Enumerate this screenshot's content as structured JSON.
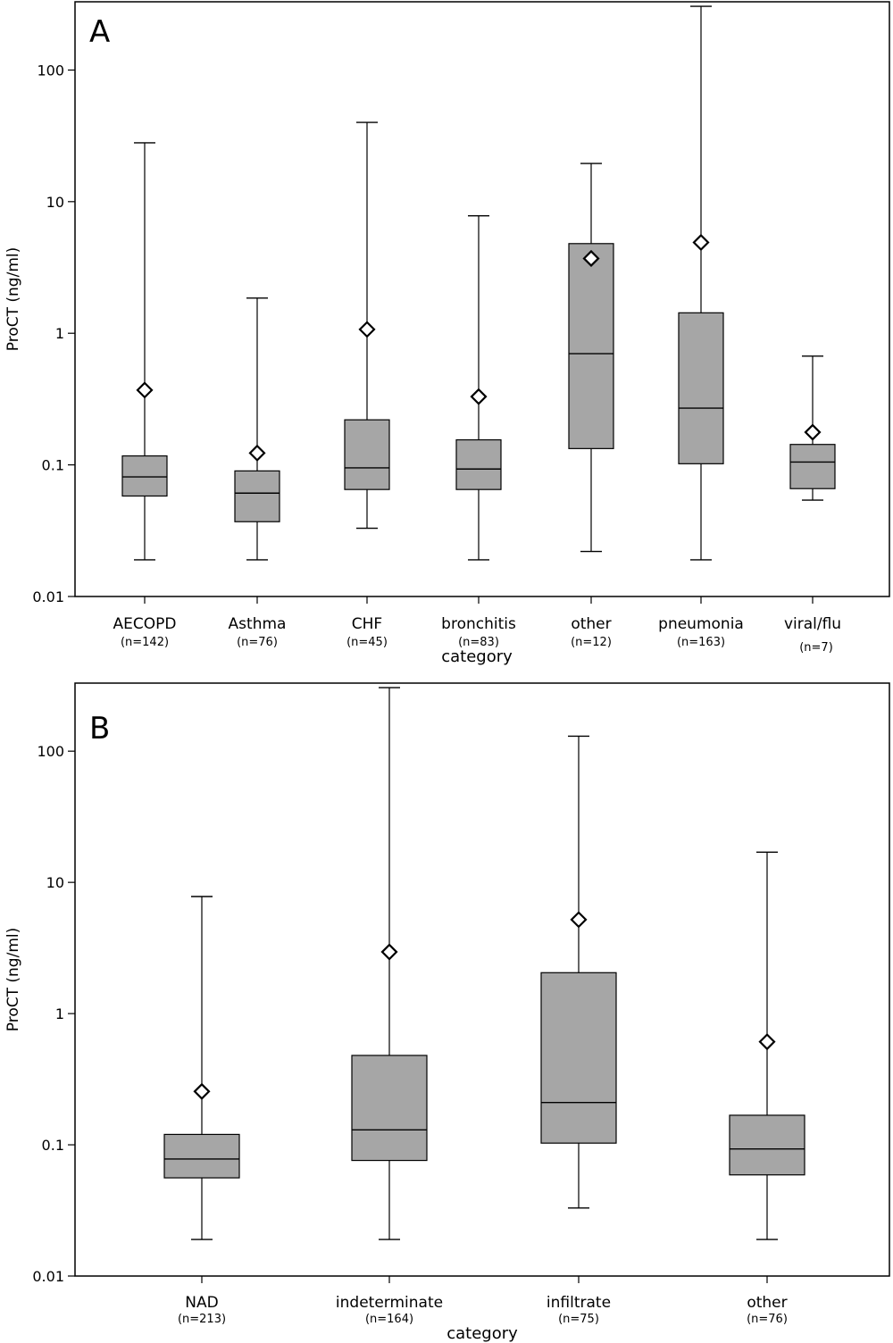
{
  "chart_data": [
    {
      "type": "box",
      "panel_label": "A",
      "ylabel": "ProCT (ng/ml)",
      "xlabel": "category",
      "yscale": "log",
      "ylim": [
        0.01,
        330
      ],
      "yticks": [
        {
          "value": 0.01,
          "label": "0.01"
        },
        {
          "value": 0.1,
          "label": "0.1"
        },
        {
          "value": 1,
          "label": "1"
        },
        {
          "value": 10,
          "label": "10"
        },
        {
          "value": 100,
          "label": "100"
        }
      ],
      "categories": [
        {
          "label": "AECOPD",
          "n": "(n=142)",
          "min": 0.019,
          "q1": 0.058,
          "median": 0.081,
          "q3": 0.117,
          "max": 28,
          "mean": 0.37
        },
        {
          "label": "Asthma",
          "n": "(n=76)",
          "min": 0.019,
          "q1": 0.037,
          "median": 0.061,
          "q3": 0.09,
          "max": 1.85,
          "mean": 0.123
        },
        {
          "label": "CHF",
          "n": "(n=45)",
          "min": 0.033,
          "q1": 0.065,
          "median": 0.095,
          "q3": 0.22,
          "max": 40,
          "mean": 1.07
        },
        {
          "label": "bronchitis",
          "n": "(n=83)",
          "min": 0.019,
          "q1": 0.065,
          "median": 0.093,
          "q3": 0.155,
          "max": 7.8,
          "mean": 0.33
        },
        {
          "label": "other",
          "n": "(n=12)",
          "min": 0.022,
          "q1": 0.133,
          "median": 0.7,
          "q3": 4.8,
          "max": 19.5,
          "mean": 3.7
        },
        {
          "label": "pneumonia",
          "n": "(n=163)",
          "min": 0.019,
          "q1": 0.102,
          "median": 0.27,
          "q3": 1.43,
          "max": 305,
          "mean": 4.9
        },
        {
          "label": "viral/flu",
          "n": "(n=7)",
          "min": 0.054,
          "q1": 0.066,
          "median": 0.105,
          "q3": 0.143,
          "max": 0.67,
          "mean": 0.177
        }
      ],
      "box_color": "#a6a6a6"
    },
    {
      "type": "box",
      "panel_label": "B",
      "ylabel": "ProCT (ng/ml)",
      "xlabel": "category",
      "yscale": "log",
      "ylim": [
        0.01,
        330
      ],
      "yticks": [
        {
          "value": 0.01,
          "label": "0.01"
        },
        {
          "value": 0.1,
          "label": "0.1"
        },
        {
          "value": 1,
          "label": "1"
        },
        {
          "value": 10,
          "label": "10"
        },
        {
          "value": 100,
          "label": "100"
        }
      ],
      "categories": [
        {
          "label": "NAD",
          "n": "(n=213)",
          "min": 0.019,
          "q1": 0.056,
          "median": 0.078,
          "q3": 0.12,
          "max": 7.8,
          "mean": 0.255
        },
        {
          "label": "indeterminate",
          "n": "(n=164)",
          "min": 0.019,
          "q1": 0.076,
          "median": 0.13,
          "q3": 0.48,
          "max": 305,
          "mean": 2.95
        },
        {
          "label": "infiltrate",
          "n": "(n=75)",
          "min": 0.033,
          "q1": 0.103,
          "median": 0.21,
          "q3": 2.05,
          "max": 130,
          "mean": 5.2
        },
        {
          "label": "other",
          "n": "(n=76)",
          "min": 0.019,
          "q1": 0.059,
          "median": 0.093,
          "q3": 0.168,
          "max": 17,
          "mean": 0.61
        }
      ],
      "box_color": "#a6a6a6"
    }
  ]
}
